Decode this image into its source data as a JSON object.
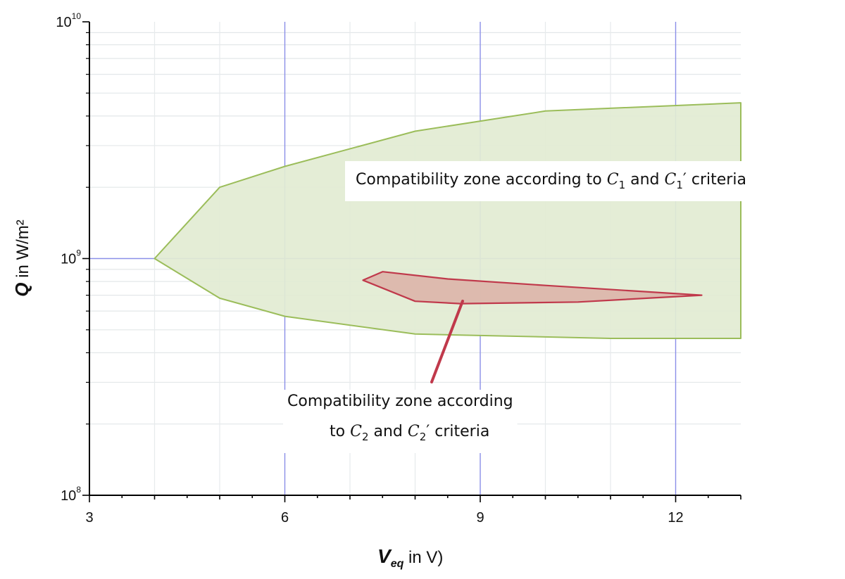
{
  "chart_data": {
    "type": "area",
    "x_scale": "linear",
    "y_scale": "log",
    "xlim": [
      3,
      13
    ],
    "ylim": [
      100000000,
      10000000000
    ],
    "x_ticks": [
      3,
      6,
      9,
      12
    ],
    "x_tick_labels": [
      "3",
      "6",
      "9",
      "12"
    ],
    "y_ticks": [
      100000000,
      1000000000,
      10000000000
    ],
    "y_tick_labels": [
      {
        "base": "10",
        "exp": "8"
      },
      {
        "base": "10",
        "exp": "9"
      },
      {
        "base": "10",
        "exp": "10"
      }
    ],
    "grid": true,
    "xlabel": {
      "symbol": "V",
      "subscript": "eq",
      "rest": " in V)"
    },
    "ylabel": {
      "symbol": "Q",
      "rest": " in W/m²"
    },
    "regions": [
      {
        "fill": "#e2ebd2",
        "stroke": "#9bbd5a",
        "points": [
          [
            4.0,
            1000000000.0
          ],
          [
            5.0,
            2000000000.0
          ],
          [
            6.0,
            2450000000.0
          ],
          [
            8.0,
            3450000000.0
          ],
          [
            10.0,
            4200000000.0
          ],
          [
            13.0,
            4550000000.0
          ],
          [
            13.0,
            460000000.0
          ],
          [
            11.0,
            460000000.0
          ],
          [
            8.0,
            480000000.0
          ],
          [
            6.0,
            570000000.0
          ],
          [
            5.0,
            680000000.0
          ],
          [
            4.0,
            1000000000.0
          ]
        ]
      },
      {
        "fill": "#dcb7ac",
        "stroke": "#c0394b",
        "points": [
          [
            7.5,
            880000000.0
          ],
          [
            8.5,
            820000000.0
          ],
          [
            10.0,
            770000000.0
          ],
          [
            12.4,
            700000000.0
          ],
          [
            10.5,
            655000000.0
          ],
          [
            8.7,
            645000000.0
          ],
          [
            8.0,
            660000000.0
          ],
          [
            7.2,
            810000000.0
          ],
          [
            7.5,
            880000000.0
          ]
        ]
      }
    ],
    "annotations": [
      {
        "parts": [
          {
            "t": "Compatibility zone according to ",
            "k": "text"
          },
          {
            "t": "C",
            "k": "var"
          },
          {
            "t": "1",
            "k": "sub"
          },
          {
            "t": " and ",
            "k": "text"
          },
          {
            "t": "C",
            "k": "var"
          },
          {
            "t": "1",
            "k": "sub"
          },
          {
            "t": "′",
            "k": "text"
          },
          {
            "t": " criteria",
            "k": "text"
          }
        ]
      },
      {
        "parts": [
          {
            "t": "Compatibility zone according",
            "k": "text"
          }
        ]
      },
      {
        "parts": [
          {
            "t": "to ",
            "k": "text"
          },
          {
            "t": "C",
            "k": "var"
          },
          {
            "t": "2",
            "k": "sub"
          },
          {
            "t": " and ",
            "k": "text"
          },
          {
            "t": "C",
            "k": "var"
          },
          {
            "t": "2",
            "k": "sub"
          },
          {
            "t": "′",
            "k": "text"
          },
          {
            "t": " criteria",
            "k": "text"
          }
        ]
      }
    ],
    "arrow_color": "#c0394b"
  }
}
